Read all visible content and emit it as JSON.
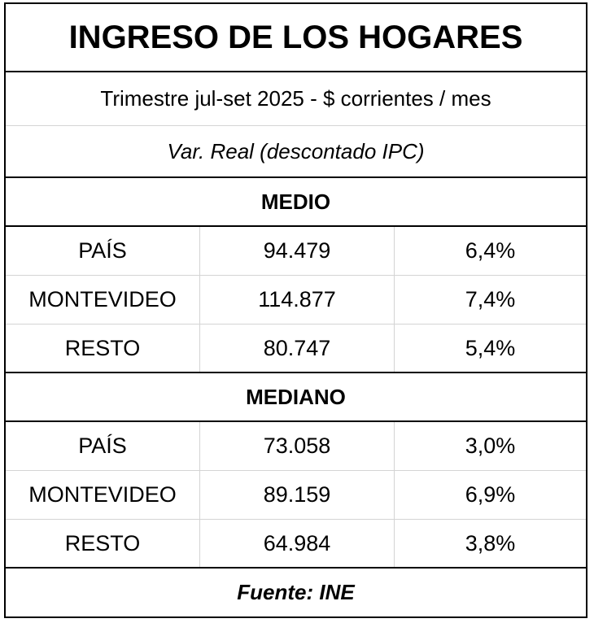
{
  "title": "INGRESO DE LOS HOGARES",
  "subtitle": "Trimestre jul-set 2025 - $ corrientes / mes",
  "note": "Var. Real (descontado IPC)",
  "sections": [
    {
      "label": "MEDIO",
      "rows": [
        {
          "region": "PAÍS",
          "value": "94.479",
          "variation": "6,4%"
        },
        {
          "region": "MONTEVIDEO",
          "value": "114.877",
          "variation": "7,4%"
        },
        {
          "region": "RESTO",
          "value": "80.747",
          "variation": "5,4%"
        }
      ]
    },
    {
      "label": "MEDIANO",
      "rows": [
        {
          "region": "PAÍS",
          "value": "73.058",
          "variation": "3,0%"
        },
        {
          "region": "MONTEVIDEO",
          "value": "89.159",
          "variation": "6,9%"
        },
        {
          "region": "RESTO",
          "value": "64.984",
          "variation": "3,8%"
        }
      ]
    }
  ],
  "footer": "Fuente: INE"
}
